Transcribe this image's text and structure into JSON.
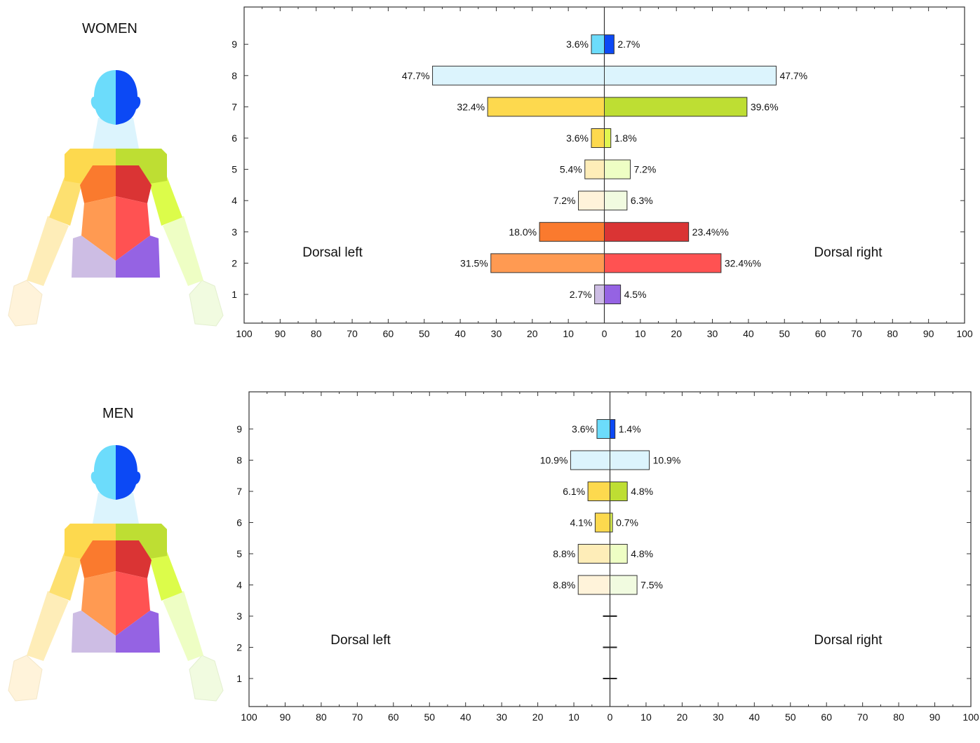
{
  "chart_data": [
    {
      "type": "bar",
      "orientation": "horizontal-diverging",
      "panel_title": "WOMEN",
      "left_label": "Dorsal left",
      "right_label": "Dorsal right",
      "categories": [
        "1",
        "2",
        "3",
        "4",
        "5",
        "6",
        "7",
        "8",
        "9"
      ],
      "xlim": [
        -100,
        100
      ],
      "x_ticks": [
        -100,
        -90,
        -80,
        -70,
        -60,
        -50,
        -40,
        -30,
        -20,
        -10,
        0,
        10,
        20,
        30,
        40,
        50,
        60,
        70,
        80,
        90,
        100
      ],
      "x_tick_labels": [
        "100",
        "90",
        "80",
        "70",
        "60",
        "50",
        "40",
        "30",
        "20",
        "10",
        "0",
        "10",
        "20",
        "30",
        "40",
        "50",
        "60",
        "70",
        "80",
        "90",
        "100"
      ],
      "series": [
        {
          "side": "left",
          "values": [
            2.7,
            31.5,
            18.0,
            7.2,
            5.4,
            3.6,
            32.4,
            47.7,
            3.6
          ],
          "labels": [
            "2.7%",
            "31.5%",
            "18.0%",
            "7.2%",
            "5.4%",
            "3.6%",
            "32.4%",
            "47.7%",
            "3.6%"
          ],
          "colors": [
            "#cdbde4",
            "#ff9a52",
            "#fa7a2e",
            "#fff3da",
            "#feedb8",
            "#fdd94e",
            "#fdd94e",
            "#dcf4fd",
            "#6cdcfb"
          ]
        },
        {
          "side": "right",
          "values": [
            4.5,
            32.4,
            23.4,
            6.3,
            7.2,
            1.8,
            39.6,
            47.7,
            2.7
          ],
          "labels": [
            "4.5%",
            "32.4%%",
            "23.4%%",
            "6.3%",
            "7.2%",
            "1.8%",
            "39.6%",
            "47.7%",
            "2.7%"
          ],
          "colors": [
            "#9563e3",
            "#ff5252",
            "#da3434",
            "#f1fbe0",
            "#eefec4",
            "#e1f54f",
            "#bede33",
            "#dcf4fd",
            "#0c49f5"
          ]
        }
      ]
    },
    {
      "type": "bar",
      "orientation": "horizontal-diverging",
      "panel_title": "MEN",
      "left_label": "Dorsal left",
      "right_label": "Dorsal right",
      "categories": [
        "1",
        "2",
        "3",
        "4",
        "5",
        "6",
        "7",
        "8",
        "9"
      ],
      "xlim": [
        -100,
        100
      ],
      "x_ticks": [
        -100,
        -90,
        -80,
        -70,
        -60,
        -50,
        -40,
        -30,
        -20,
        -10,
        0,
        10,
        20,
        30,
        40,
        50,
        60,
        70,
        80,
        90,
        100
      ],
      "x_tick_labels": [
        "100",
        "90",
        "80",
        "70",
        "60",
        "50",
        "40",
        "30",
        "20",
        "10",
        "0",
        "10",
        "20",
        "30",
        "40",
        "50",
        "60",
        "70",
        "80",
        "90",
        "100"
      ],
      "series": [
        {
          "side": "left",
          "values": [
            0,
            0,
            0,
            8.8,
            8.8,
            4.1,
            6.1,
            10.9,
            3.6
          ],
          "labels": [
            "",
            "",
            "",
            "8.8%",
            "8.8%",
            "4.1%",
            "6.1%",
            "10.9%",
            "3.6%"
          ],
          "colors": [
            "#cdbde4",
            "#ff9a52",
            "#fa7a2e",
            "#fff3da",
            "#feedb8",
            "#fdd94e",
            "#fdd94e",
            "#dcf4fd",
            "#6cdcfb"
          ]
        },
        {
          "side": "right",
          "values": [
            0,
            0,
            0,
            7.5,
            4.8,
            0.7,
            4.8,
            10.9,
            1.4
          ],
          "labels": [
            "",
            "",
            "",
            "7.5%",
            "4.8%",
            "0.7%",
            "4.8%",
            "10.9%",
            "1.4%"
          ],
          "colors": [
            "#9563e3",
            "#ff5252",
            "#da3434",
            "#f1fbe0",
            "#eefec4",
            "#e1f54f",
            "#bede33",
            "#dcf4fd",
            "#0c49f5"
          ]
        }
      ]
    }
  ],
  "body_figure": {
    "zone_colors": {
      "head_left": "#6cdcfb",
      "head_right": "#0c49f5",
      "neck": "#dcf4fd",
      "shoulder_left": "#fdd94e",
      "shoulder_right": "#bede33",
      "upper_arm_left": "#fde070",
      "upper_arm_right": "#dcfc4a",
      "forearm_left": "#feedb8",
      "forearm_right": "#eefec4",
      "hand_left": "#fff3da",
      "hand_right": "#f1fbe0",
      "upper_back_left": "#fa7a2e",
      "upper_back_right": "#da3434",
      "mid_back_left": "#ff9a52",
      "mid_back_right": "#ff5252",
      "lower_back_left": "#cdbde4",
      "lower_back_right": "#9563e3"
    }
  }
}
